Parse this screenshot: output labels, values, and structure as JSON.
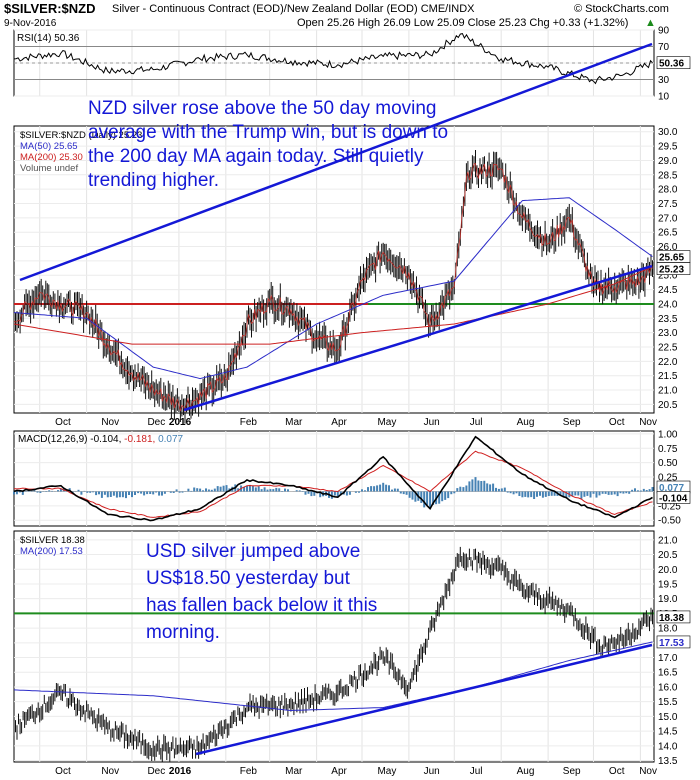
{
  "header": {
    "symbol": "$SILVER:$NZD",
    "description": "Silver - Continuous Contract (EOD)/New Zealand Dollar (EOD) CME/INDX",
    "watermark": "© StockCharts.com",
    "date": "9-Nov-2016",
    "ohlc": "Open 25.26  High 26.09  Low 25.09  Close 25.23  Chg +0.33 (+1.32%)",
    "change_arrow": "▲"
  },
  "rsi_panel": {
    "label": "RSI(14) 50.36",
    "value_tag": "50.36",
    "ticks": [
      "90",
      "70",
      "50",
      "30",
      "10"
    ]
  },
  "price_panel": {
    "legend": [
      "$SILVER:$NZD (Daily) 25.23",
      "MA(50) 25.65",
      "MA(200) 25.30",
      "Volume undef"
    ],
    "value_tags": [
      "25.65",
      "25.23"
    ],
    "ticks": [
      "30.0",
      "29.5",
      "29.0",
      "28.5",
      "28.0",
      "27.5",
      "27.0",
      "26.5",
      "26.0",
      "25.5",
      "25.0",
      "24.5",
      "24.0",
      "23.5",
      "23.0",
      "22.5",
      "22.0",
      "21.5",
      "21.0",
      "20.5"
    ],
    "annotation": [
      "NZD silver rose above the 50 day moving",
      "average with the Trump win, but is down to",
      "the 200 day MA again today. Still quietly",
      "trending higher."
    ]
  },
  "macd_panel": {
    "label_prefix": "MACD(12,26,9) -0.104,",
    "label_signal": "-0.181,",
    "label_hist": "0.077",
    "value_tags": [
      "0.077",
      "-0.104"
    ],
    "ticks": [
      "1.00",
      "0.75",
      "0.50",
      "0.25",
      "0.00",
      "-0.25",
      "-0.50"
    ]
  },
  "usd_panel": {
    "legend": [
      "$SILVER 18.38",
      "MA(200) 17.53"
    ],
    "value_tags": [
      "18.38",
      "17.53"
    ],
    "ticks": [
      "21.0",
      "20.5",
      "20.0",
      "19.5",
      "19.0",
      "18.5",
      "18.0",
      "17.5",
      "17.0",
      "16.5",
      "16.0",
      "15.5",
      "15.0",
      "14.5",
      "14.0",
      "13.5"
    ],
    "annotation": [
      "USD silver jumped above",
      "US$18.50 yesterday but",
      "has fallen back below it this",
      "morning."
    ]
  },
  "months_top": [
    "Oct",
    "Nov",
    "Dec",
    "2016",
    "Feb",
    "Mar",
    "Apr",
    "May",
    "Jun",
    "Jul",
    "Aug",
    "Sep",
    "Oct",
    "Nov"
  ],
  "months_bottom": [
    "Oct",
    "Nov",
    "Dec",
    "2016",
    "Feb",
    "Mar",
    "Apr",
    "May",
    "Jun",
    "Jul",
    "Aug",
    "Sep",
    "Oct",
    "Nov"
  ],
  "colors": {
    "annotation": "#1418d6",
    "ma50": "#2c2cc8",
    "ma200": "#cc2020",
    "support": "#1e8c1e",
    "macd": "#000000",
    "signal": "#d02020",
    "histogram": "#4682b4"
  },
  "chart_data": [
    {
      "type": "line",
      "name": "RSI(14)",
      "ylim": [
        10,
        90
      ],
      "levels": [
        70,
        30
      ],
      "x": [
        "2015-09-14",
        "2015-10-15",
        "2015-11-15",
        "2015-12-15",
        "2016-01-15",
        "2016-02-15",
        "2016-03-15",
        "2016-04-15",
        "2016-05-15",
        "2016-06-15",
        "2016-07-05",
        "2016-08-01",
        "2016-09-01",
        "2016-10-01",
        "2016-10-20",
        "2016-11-09"
      ],
      "values": [
        55,
        62,
        40,
        42,
        55,
        60,
        52,
        48,
        58,
        60,
        85,
        55,
        45,
        28,
        35,
        50.36
      ]
    },
    {
      "type": "line",
      "name": "$SILVER:$NZD",
      "ylim": [
        20.2,
        30.2
      ],
      "x": [
        "2015-09-14",
        "2015-10-01",
        "2015-10-15",
        "2015-11-01",
        "2015-11-15",
        "2015-12-01",
        "2015-12-15",
        "2016-01-01",
        "2016-01-10",
        "2016-02-01",
        "2016-02-15",
        "2016-03-01",
        "2016-03-15",
        "2016-04-01",
        "2016-04-15",
        "2016-05-01",
        "2016-05-15",
        "2016-06-01",
        "2016-06-15",
        "2016-07-01",
        "2016-07-10",
        "2016-08-01",
        "2016-08-15",
        "2016-09-01",
        "2016-09-15",
        "2016-10-01",
        "2016-10-15",
        "2016-11-01",
        "2016-11-09"
      ],
      "values": [
        23.4,
        24.4,
        24.0,
        23.7,
        22.6,
        21.6,
        21.0,
        20.5,
        20.6,
        21.4,
        23.3,
        24.1,
        23.8,
        22.8,
        22.4,
        24.8,
        25.8,
        25.1,
        23.3,
        24.6,
        28.6,
        28.7,
        27.0,
        26.1,
        27.0,
        24.6,
        24.6,
        24.8,
        25.23
      ],
      "series": [
        {
          "name": "MA(50)",
          "x": [
            "2015-09-14",
            "2015-11-01",
            "2015-12-15",
            "2016-01-15",
            "2016-02-15",
            "2016-04-01",
            "2016-05-15",
            "2016-07-01",
            "2016-08-15",
            "2016-09-15",
            "2016-10-15",
            "2016-11-09"
          ],
          "values": [
            23.7,
            23.5,
            21.8,
            21.4,
            21.8,
            23.3,
            24.3,
            24.8,
            27.6,
            27.7,
            26.6,
            25.65
          ]
        },
        {
          "name": "MA(200)",
          "x": [
            "2015-09-14",
            "2015-12-01",
            "2016-01-15",
            "2016-03-01",
            "2016-05-01",
            "2016-07-01",
            "2016-09-01",
            "2016-10-15",
            "2016-11-09"
          ],
          "values": [
            23.3,
            22.6,
            22.6,
            22.6,
            23.0,
            23.3,
            24.0,
            24.7,
            25.3
          ]
        }
      ]
    },
    {
      "type": "line",
      "name": "MACD(12,26,9)",
      "ylim": [
        -0.6,
        1.05
      ],
      "x": [
        "2015-09-14",
        "2015-10-15",
        "2015-11-15",
        "2015-12-15",
        "2016-01-15",
        "2016-02-15",
        "2016-03-15",
        "2016-04-15",
        "2016-05-15",
        "2016-06-15",
        "2016-07-15",
        "2016-08-15",
        "2016-09-15",
        "2016-10-15",
        "2016-11-09"
      ],
      "values": [
        0.0,
        0.1,
        -0.4,
        -0.5,
        -0.3,
        0.2,
        0.1,
        -0.1,
        0.6,
        -0.3,
        0.95,
        0.3,
        -0.15,
        -0.45,
        -0.104
      ],
      "series": [
        {
          "name": "Signal",
          "values": [
            0.05,
            0.05,
            -0.3,
            -0.45,
            -0.35,
            0.1,
            0.1,
            0.0,
            0.45,
            0.0,
            0.7,
            0.4,
            -0.05,
            -0.4,
            -0.181
          ]
        },
        {
          "name": "Histogram",
          "values": [
            -0.05,
            0.05,
            -0.1,
            -0.05,
            0.05,
            0.1,
            0.0,
            -0.1,
            0.15,
            -0.3,
            0.25,
            -0.1,
            -0.1,
            -0.05,
            0.077
          ]
        }
      ]
    },
    {
      "type": "line",
      "name": "$SILVER",
      "ylim": [
        13.5,
        21.3
      ],
      "x": [
        "2015-09-14",
        "2015-10-15",
        "2015-11-15",
        "2015-12-15",
        "2016-01-15",
        "2016-02-15",
        "2016-03-15",
        "2016-04-15",
        "2016-05-15",
        "2016-06-01",
        "2016-07-05",
        "2016-08-01",
        "2016-08-15",
        "2016-09-15",
        "2016-10-05",
        "2016-10-20",
        "2016-11-09"
      ],
      "values": [
        14.6,
        15.8,
        14.6,
        13.9,
        13.9,
        15.3,
        15.4,
        15.8,
        17.0,
        16.0,
        20.5,
        20.0,
        19.3,
        18.6,
        17.4,
        17.6,
        18.38
      ],
      "series": [
        {
          "name": "MA(200)",
          "x": [
            "2015-09-14",
            "2015-12-15",
            "2016-03-15",
            "2016-05-15",
            "2016-07-15",
            "2016-09-15",
            "2016-11-09"
          ],
          "values": [
            15.9,
            15.7,
            15.2,
            15.3,
            16.0,
            16.9,
            17.53
          ]
        }
      ]
    }
  ]
}
